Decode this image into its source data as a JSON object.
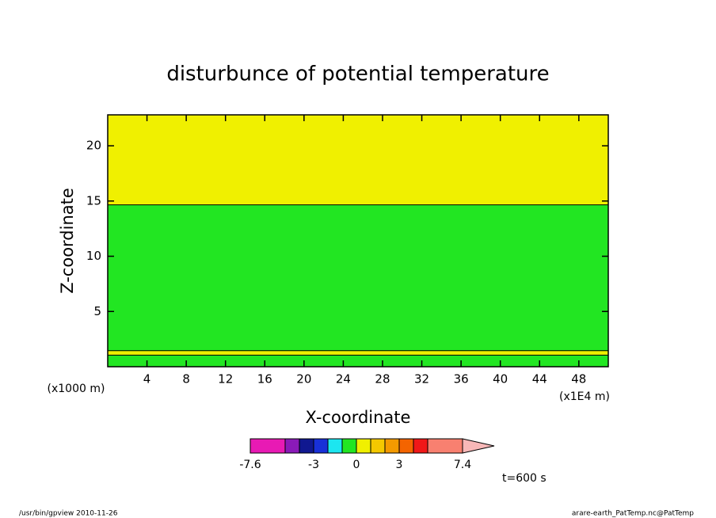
{
  "chart_data": {
    "type": "contour",
    "title": "disturbunce of potential temperature",
    "xlabel": "X-coordinate",
    "ylabel": "Z-coordinate",
    "x_unit_left": "(x1000 m)",
    "x_unit_right": "(x1E4 m)",
    "time_label": "t=600 s",
    "xlim": [
      0,
      51
    ],
    "ylim": [
      0,
      22.8
    ],
    "xticks": [
      4,
      8,
      12,
      16,
      20,
      24,
      28,
      32,
      36,
      40,
      44,
      48
    ],
    "yticks": [
      5,
      10,
      15,
      20
    ],
    "bands": [
      {
        "from": 0,
        "to": 1.05,
        "color": "#22e622"
      },
      {
        "from": 1.05,
        "to": 1.45,
        "color": "#f0f000"
      },
      {
        "from": 1.45,
        "to": 14.65,
        "color": "#22e622"
      },
      {
        "from": 14.65,
        "to": 22.8,
        "color": "#f0f000"
      }
    ],
    "colorbar": {
      "levels": [
        -7.6,
        -5,
        -4,
        -3,
        -2,
        -1,
        0,
        1,
        2,
        3,
        4,
        5,
        7.4
      ],
      "colors": [
        "#e81ab4",
        "#8a1ab8",
        "#101890",
        "#1830d8",
        "#1ce6f0",
        "#22e622",
        "#f0f000",
        "#f4c800",
        "#f49a00",
        "#f46400",
        "#f01818",
        "#f88070",
        "#f8b8b8"
      ],
      "ticks": [
        -7.6,
        -3,
        0,
        3,
        7.4
      ]
    }
  },
  "footer": {
    "left": "/usr/bin/gpview  2010-11-26",
    "right": "arare-earth_PatTemp.nc@PatTemp"
  }
}
